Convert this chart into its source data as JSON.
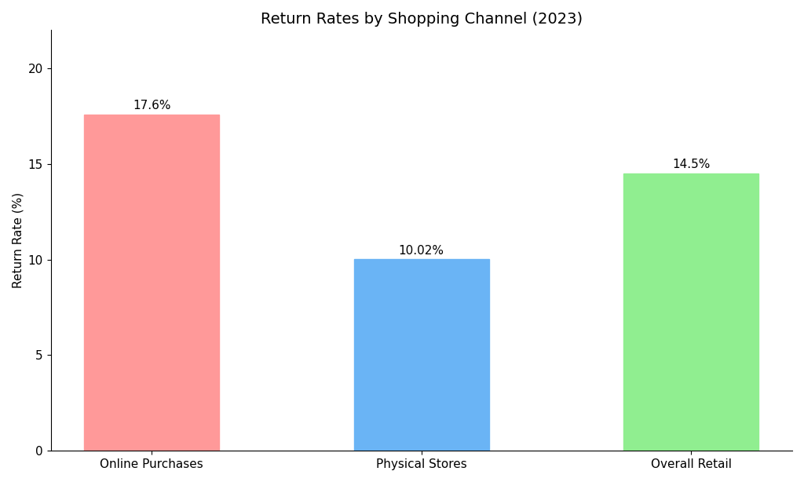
{
  "categories": [
    "Online Purchases",
    "Physical Stores",
    "Overall Retail"
  ],
  "values": [
    17.6,
    10.02,
    14.5
  ],
  "bar_colors": [
    "#ff9999",
    "#6ab4f5",
    "#90ee90"
  ],
  "bar_labels": [
    "17.6%",
    "10.02%",
    "14.5%"
  ],
  "title": "Return Rates by Shopping Channel (2023)",
  "ylabel": "Return Rate (%)",
  "ylim": [
    0,
    22
  ],
  "yticks": [
    0,
    5,
    10,
    15,
    20
  ],
  "title_fontsize": 14,
  "label_fontsize": 11,
  "tick_fontsize": 11,
  "bar_width": 0.5,
  "background_color": "#ffffff"
}
